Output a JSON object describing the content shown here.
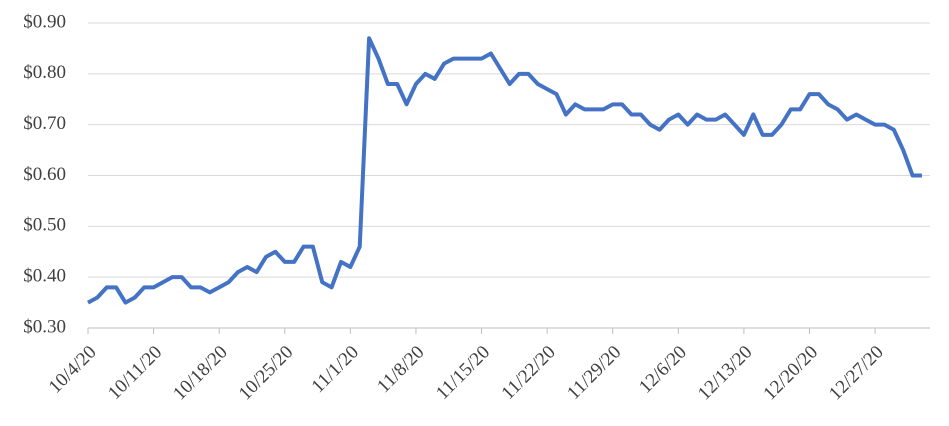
{
  "chart_data": {
    "type": "line",
    "categories": [
      "10/4/20",
      null,
      null,
      null,
      null,
      null,
      null,
      "10/11/20",
      null,
      null,
      null,
      null,
      null,
      null,
      "10/18/20",
      null,
      null,
      null,
      null,
      null,
      null,
      "10/25/20",
      null,
      null,
      null,
      null,
      null,
      null,
      "11/1/20",
      null,
      null,
      null,
      null,
      null,
      null,
      "11/8/20",
      null,
      null,
      null,
      null,
      null,
      null,
      "11/15/20",
      null,
      null,
      null,
      null,
      null,
      null,
      "11/22/20",
      null,
      null,
      null,
      null,
      null,
      null,
      "11/29/20",
      null,
      null,
      null,
      null,
      null,
      null,
      "12/6/20",
      null,
      null,
      null,
      null,
      null,
      null,
      "12/13/20",
      null,
      null,
      null,
      null,
      null,
      null,
      "12/20/20",
      null,
      null,
      null,
      null,
      null,
      null,
      "12/27/20",
      null,
      null,
      null,
      null,
      null
    ],
    "values": [
      0.35,
      0.36,
      0.38,
      0.38,
      0.35,
      0.36,
      0.38,
      0.38,
      0.39,
      0.4,
      0.4,
      0.38,
      0.38,
      0.37,
      0.38,
      0.39,
      0.41,
      0.42,
      0.41,
      0.44,
      0.45,
      0.43,
      0.43,
      0.46,
      0.46,
      0.39,
      0.38,
      0.43,
      0.42,
      0.46,
      0.87,
      0.83,
      0.78,
      0.78,
      0.74,
      0.78,
      0.8,
      0.79,
      0.82,
      0.83,
      0.83,
      0.83,
      0.83,
      0.84,
      0.81,
      0.78,
      0.8,
      0.8,
      0.78,
      0.77,
      0.76,
      0.72,
      0.74,
      0.73,
      0.73,
      0.73,
      0.74,
      0.74,
      0.72,
      0.72,
      0.7,
      0.69,
      0.71,
      0.72,
      0.7,
      0.72,
      0.71,
      0.71,
      0.72,
      0.7,
      0.68,
      0.72,
      0.68,
      0.68,
      0.7,
      0.73,
      0.73,
      0.76,
      0.76,
      0.74,
      0.73,
      0.71,
      0.72,
      0.71,
      0.7,
      0.7,
      0.69,
      0.65,
      0.6,
      0.6
    ],
    "color": "#4472c4",
    "ylim": [
      0.3,
      0.9
    ],
    "yticks": [
      {
        "value": 0.3,
        "label": "$0.30"
      },
      {
        "value": 0.4,
        "label": "$0.40"
      },
      {
        "value": 0.5,
        "label": "$0.50"
      },
      {
        "value": 0.6,
        "label": "$0.60"
      },
      {
        "value": 0.7,
        "label": "$0.70"
      },
      {
        "value": 0.8,
        "label": "$0.80"
      },
      {
        "value": 0.9,
        "label": "$0.90"
      }
    ],
    "grid": true
  }
}
